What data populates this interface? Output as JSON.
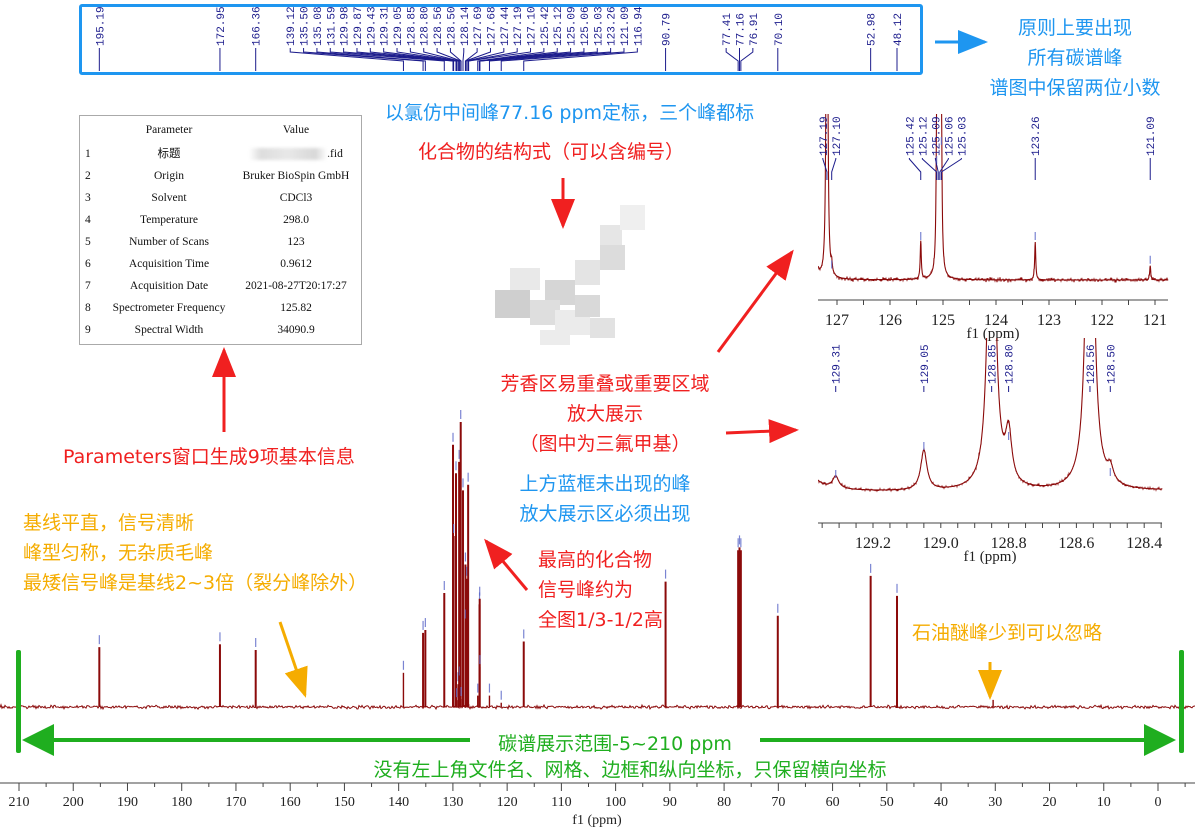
{
  "colors": {
    "spectrum": "#8b0a0a",
    "peak_label": "#1c1c8c",
    "marker": "#5a66c8",
    "frame": "#1e96f0",
    "note_blue": "#1e96f0",
    "note_red": "#f02020",
    "note_orange": "#f5ac00",
    "note_green": "#1fae1f"
  },
  "chart_data": {
    "type": "line",
    "subtype": "13C NMR spectrum",
    "xlabel": "f1 (ppm)",
    "xlim": [
      213.5,
      -6
    ],
    "x_reversed": true,
    "xticks": [
      210,
      200,
      190,
      180,
      170,
      160,
      150,
      140,
      130,
      120,
      110,
      100,
      90,
      80,
      70,
      60,
      50,
      40,
      30,
      20,
      10,
      0
    ],
    "grid": false,
    "y_axis_shown": false,
    "peaks": [
      {
        "ppm": 195.19,
        "rel": 21
      },
      {
        "ppm": 172.95,
        "rel": 22
      },
      {
        "ppm": 166.36,
        "rel": 20
      },
      {
        "ppm": 139.12,
        "rel": 12
      },
      {
        "ppm": 135.5,
        "rel": 26
      },
      {
        "ppm": 135.08,
        "rel": 27
      },
      {
        "ppm": 131.59,
        "rel": 40
      },
      {
        "ppm": 129.98,
        "rel": 92
      },
      {
        "ppm": 129.87,
        "rel": 60
      },
      {
        "ppm": 129.43,
        "rel": 82
      },
      {
        "ppm": 129.31,
        "rel": 2.4
      },
      {
        "ppm": 129.05,
        "rel": 8
      },
      {
        "ppm": 128.85,
        "rel": 86
      },
      {
        "ppm": 128.8,
        "rel": 10
      },
      {
        "ppm": 128.56,
        "rel": 100
      },
      {
        "ppm": 128.5,
        "rel": 2.8
      },
      {
        "ppm": 128.14,
        "rel": 76
      },
      {
        "ppm": 127.69,
        "rel": 50
      },
      {
        "ppm": 127.68,
        "rel": 30
      },
      {
        "ppm": 127.44,
        "rel": 45
      },
      {
        "ppm": 127.19,
        "rel": 78
      },
      {
        "ppm": 127.1,
        "rel": 1
      },
      {
        "ppm": 125.42,
        "rel": 4
      },
      {
        "ppm": 125.12,
        "rel": 12
      },
      {
        "ppm": 125.09,
        "rel": 36
      },
      {
        "ppm": 125.06,
        "rel": 38
      },
      {
        "ppm": 125.03,
        "rel": 14
      },
      {
        "ppm": 123.26,
        "rel": 4
      },
      {
        "ppm": 121.09,
        "rel": 1.5
      },
      {
        "ppm": 116.94,
        "rel": 23
      },
      {
        "ppm": 90.79,
        "rel": 44
      },
      {
        "ppm": 77.41,
        "rel": 55
      },
      {
        "ppm": 77.16,
        "rel": 56
      },
      {
        "ppm": 76.91,
        "rel": 55
      },
      {
        "ppm": 70.1,
        "rel": 32
      },
      {
        "ppm": 52.98,
        "rel": 46
      },
      {
        "ppm": 48.12,
        "rel": 39
      }
    ],
    "unlabeled_peaks": [
      {
        "ppm": 30.4,
        "rel": 2.5
      }
    ],
    "peak_labels": [
      "195.19",
      "172.95",
      "166.36",
      "139.12",
      "135.50",
      "135.08",
      "131.59",
      "129.98",
      "129.87",
      "129.43",
      "129.31",
      "129.05",
      "128.85",
      "128.80",
      "128.56",
      "128.50",
      "128.14",
      "127.69",
      "127.68",
      "127.44",
      "127.19",
      "127.10",
      "125.42",
      "125.12",
      "125.09",
      "125.06",
      "125.03",
      "123.26",
      "121.09",
      "116.94",
      "90.79",
      "77.41",
      "77.16",
      "76.91",
      "70.10",
      "52.98",
      "48.12"
    ],
    "insets": [
      {
        "xlabel": "f1 (ppm)",
        "xlim": [
          127.35,
          120.6
        ],
        "xticks": [
          "127",
          "126",
          "125",
          "124",
          "123",
          "122",
          "121"
        ],
        "peak_labels": [
          "127.19",
          "127.10",
          "125.42",
          "125.12",
          "125.09",
          "125.06",
          "125.03",
          "123.26",
          "121.09"
        ]
      },
      {
        "xlabel": "f1 (ppm)",
        "xlim": [
          129.36,
          128.35
        ],
        "xticks": [
          "129.2",
          "129.0",
          "128.8",
          "128.6",
          "128.4"
        ],
        "peak_labels": [
          "129.31",
          "129.05",
          "128.85",
          "128.80",
          "128.56",
          "128.50"
        ]
      }
    ]
  },
  "parameters": {
    "header": {
      "param": "Parameter",
      "value": "Value"
    },
    "rows": [
      {
        "idx": "1",
        "param": "标题",
        "value": ".fid"
      },
      {
        "idx": "2",
        "param": "Origin",
        "value": "Bruker BioSpin GmbH"
      },
      {
        "idx": "3",
        "param": "Solvent",
        "value": "CDCl3"
      },
      {
        "idx": "4",
        "param": "Temperature",
        "value": "298.0"
      },
      {
        "idx": "5",
        "param": "Number of Scans",
        "value": "123"
      },
      {
        "idx": "6",
        "param": "Acquisition Time",
        "value": "0.9612"
      },
      {
        "idx": "7",
        "param": "Acquisition Date",
        "value": "2021-08-27T20:17:27"
      },
      {
        "idx": "8",
        "param": "Spectrometer Frequency",
        "value": "125.82"
      },
      {
        "idx": "9",
        "param": "Spectral Width",
        "value": "34090.9"
      }
    ]
  },
  "notes": {
    "all_peaks": [
      "原则上要出现",
      "所有碳谱峰",
      "谱图中保留两位小数"
    ],
    "calibration": "以氯仿中间峰77.16 ppm定标，三个峰都标",
    "structure": "化合物的结构式（可以含编号）",
    "parameters": "Parameters窗口生成9项基本信息",
    "zoom_region": [
      "芳香区易重叠或重要区域",
      "放大展示",
      "（图中为三氟甲基）"
    ],
    "zoom_required": [
      "上方蓝框未出现的峰",
      "放大展示区必须出现"
    ],
    "tallest": [
      "最高的化合物",
      "信号峰约为",
      "全图1/3-1/2高"
    ],
    "baseline": [
      "基线平直，信号清晰",
      "峰型匀称，无杂质毛峰",
      "最矮信号峰是基线2~3倍（裂分峰除外）"
    ],
    "solvent_impurity": "石油醚峰少到可以忽略",
    "range": "碳谱展示范围-5~210 ppm",
    "format": "没有左上角文件名、网格、边框和纵向坐标，只保留横向坐标"
  }
}
